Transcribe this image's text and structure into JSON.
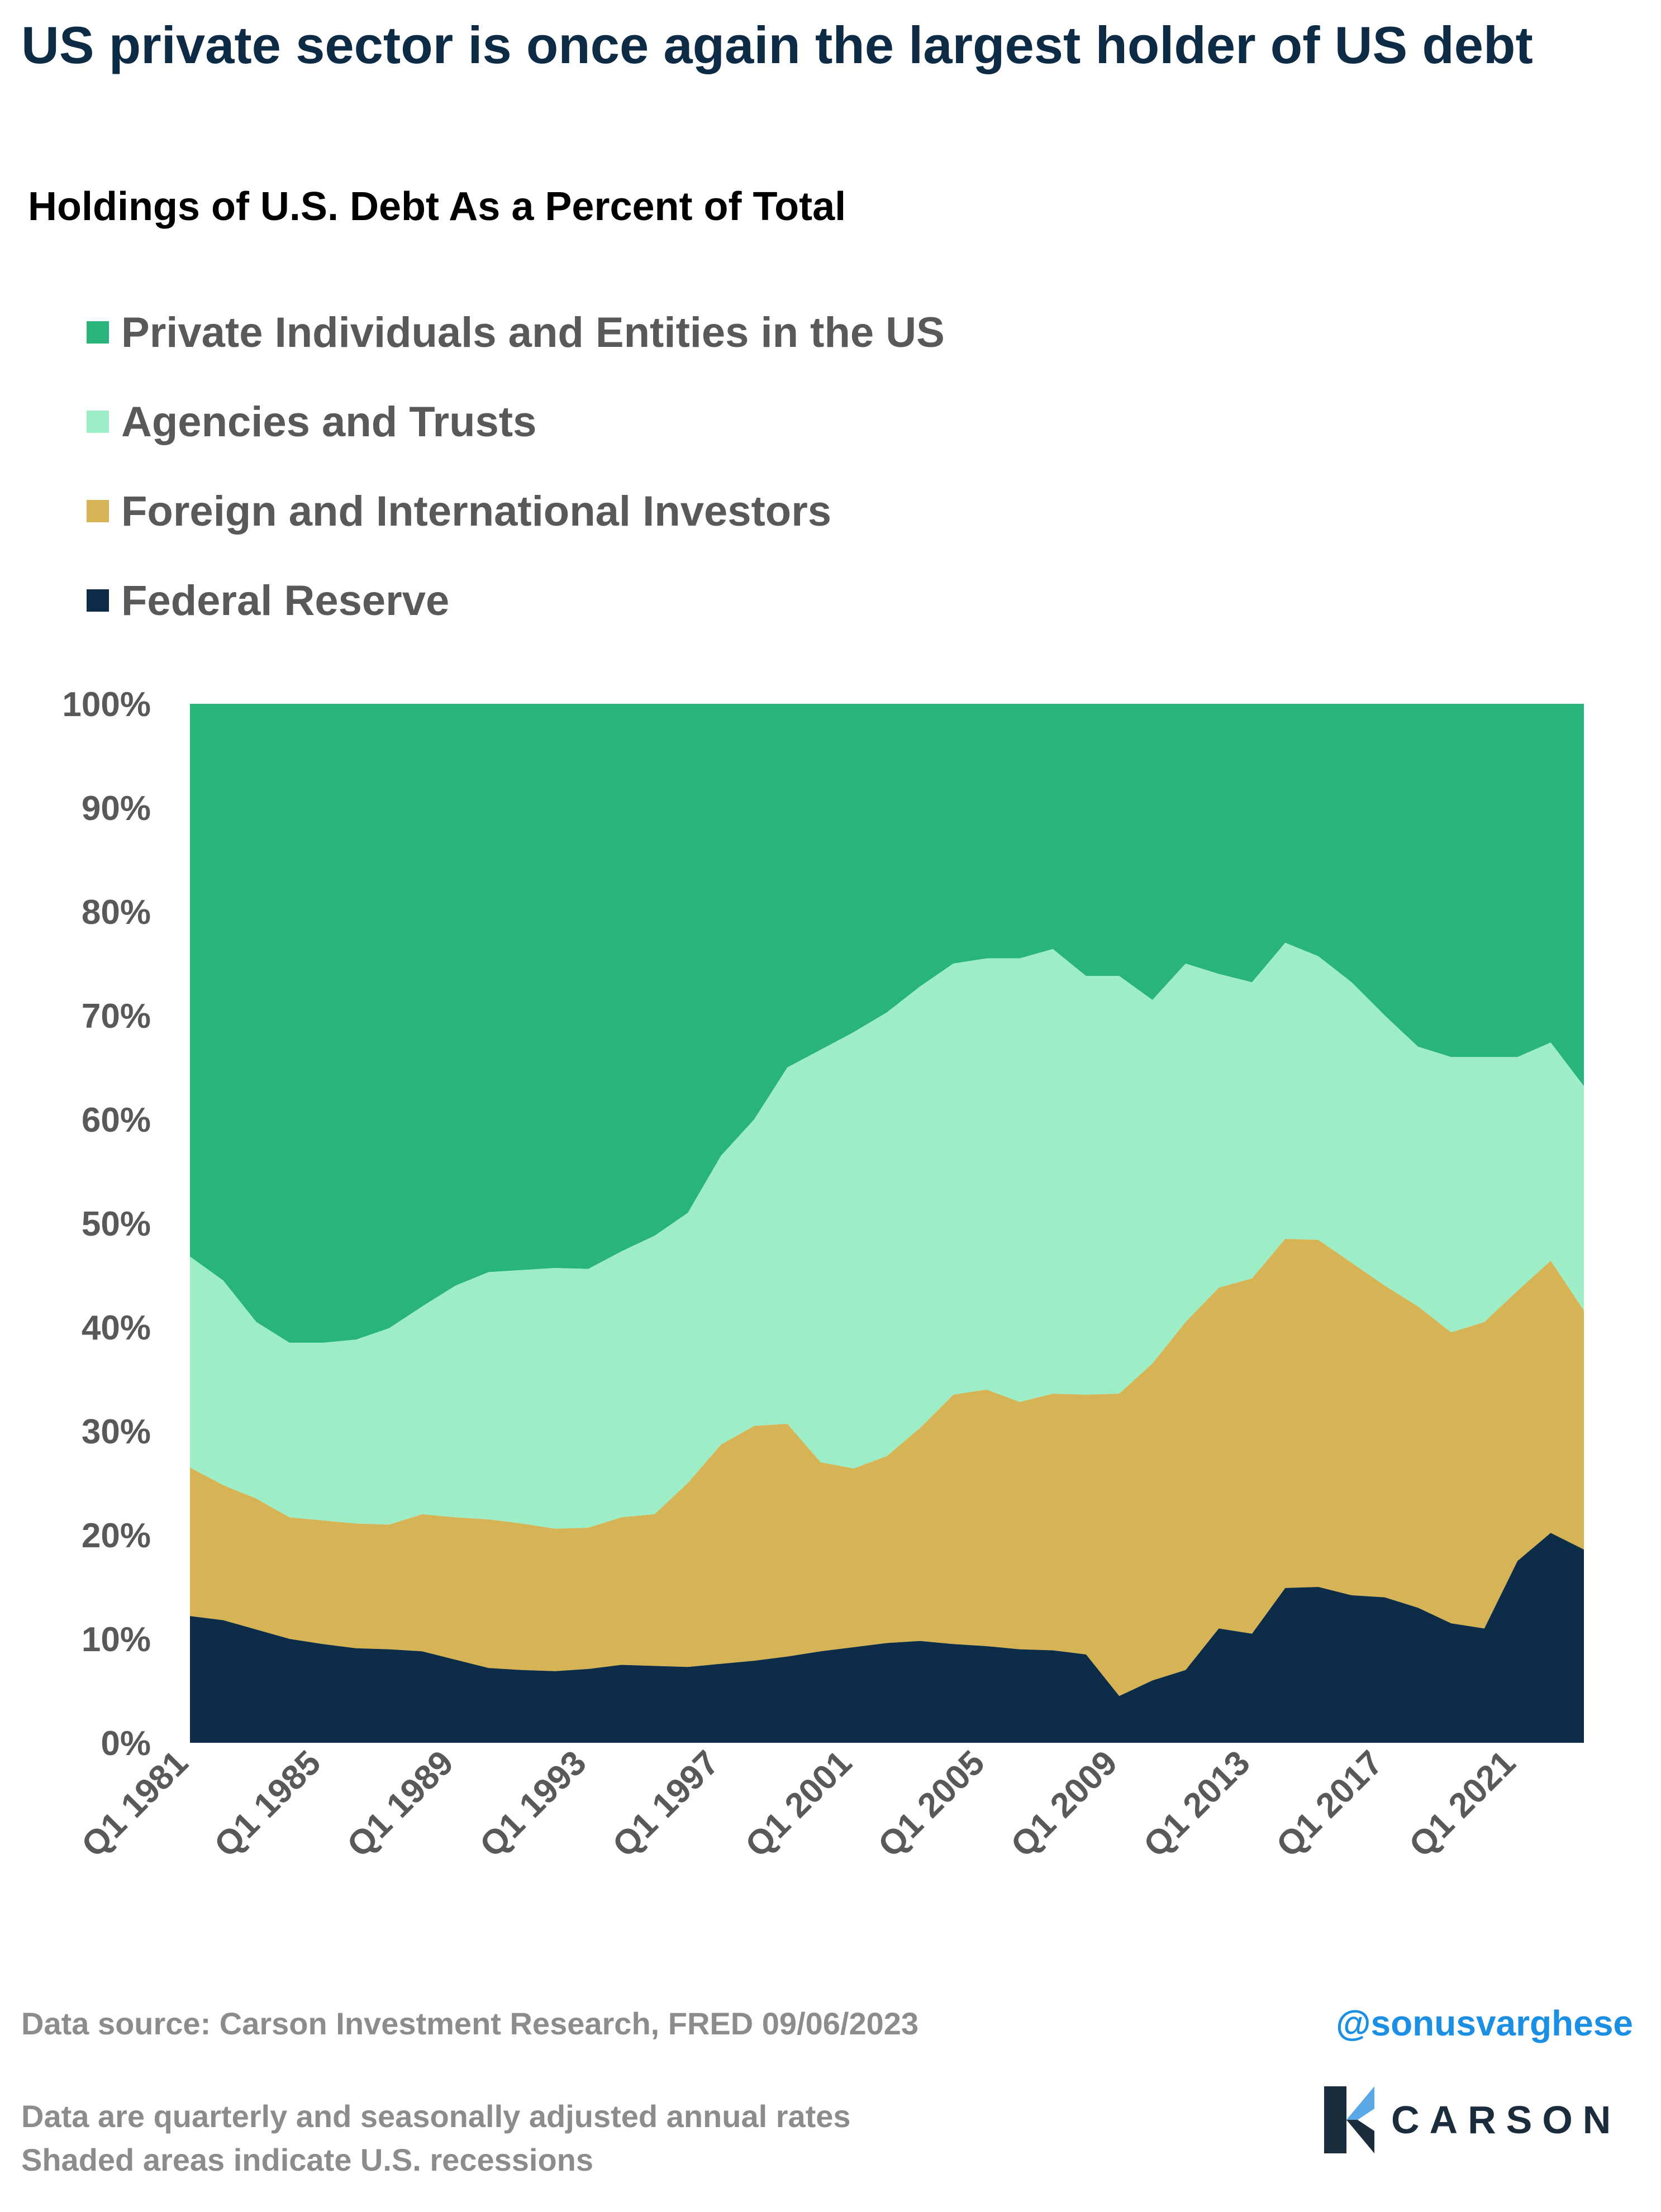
{
  "header": {
    "title": "US private sector is once again the largest holder of US debt",
    "subtitle": "Holdings of U.S. Debt As a Percent of Total"
  },
  "legend": [
    {
      "label": "Private Individuals and Entities in the US",
      "color": "#28b47b"
    },
    {
      "label": "Agencies and Trusts",
      "color": "#9deec6"
    },
    {
      "label": "Foreign and International Investors",
      "color": "#d6b456"
    },
    {
      "label": "Federal Reserve",
      "color": "#0d2c48"
    }
  ],
  "chart_data": {
    "type": "area",
    "stacked": true,
    "x": [
      "Q1 1981",
      "Q1 1982",
      "Q1 1983",
      "Q1 1984",
      "Q1 1985",
      "Q1 1986",
      "Q1 1987",
      "Q1 1988",
      "Q1 1989",
      "Q1 1990",
      "Q1 1991",
      "Q1 1992",
      "Q1 1993",
      "Q1 1994",
      "Q1 1995",
      "Q1 1996",
      "Q1 1997",
      "Q1 1998",
      "Q1 1999",
      "Q1 2000",
      "Q1 2001",
      "Q1 2002",
      "Q1 2003",
      "Q1 2004",
      "Q1 2005",
      "Q1 2006",
      "Q1 2007",
      "Q1 2008",
      "Q1 2009",
      "Q1 2010",
      "Q1 2011",
      "Q1 2012",
      "Q1 2013",
      "Q1 2014",
      "Q1 2015",
      "Q1 2016",
      "Q1 2017",
      "Q1 2018",
      "Q1 2019",
      "Q1 2020",
      "Q1 2021",
      "Q1 2022",
      "Q2 2023"
    ],
    "series": [
      {
        "name": "Federal Reserve",
        "color": "#0d2c48",
        "values": [
          12.2,
          11.8,
          10.9,
          10.0,
          9.5,
          9.1,
          9.0,
          8.8,
          8.0,
          7.2,
          7.0,
          6.9,
          7.1,
          7.5,
          7.4,
          7.3,
          7.6,
          7.9,
          8.3,
          8.8,
          9.2,
          9.6,
          9.8,
          9.5,
          9.3,
          9.0,
          8.9,
          8.5,
          4.5,
          6.0,
          7.0,
          11.0,
          10.5,
          14.9,
          15.0,
          14.2,
          14.0,
          13.0,
          11.5,
          11.0,
          17.5,
          20.2,
          18.6
        ]
      },
      {
        "name": "Foreign and International Investors",
        "color": "#d6b456",
        "values": [
          14.3,
          13.0,
          12.6,
          11.7,
          11.9,
          12.0,
          12.0,
          13.2,
          13.7,
          14.3,
          14.1,
          13.7,
          13.6,
          14.2,
          14.6,
          17.7,
          21.1,
          22.6,
          22.4,
          18.2,
          17.2,
          18.0,
          20.5,
          24.0,
          24.7,
          23.8,
          24.7,
          25.0,
          29.1,
          30.5,
          33.5,
          32.8,
          34.2,
          33.6,
          33.4,
          32.0,
          30.0,
          29.0,
          28.0,
          29.5,
          26.0,
          26.2,
          23.0
        ]
      },
      {
        "name": "Agencies and Trusts",
        "color": "#9deec6",
        "values": [
          20.3,
          19.7,
          17.0,
          16.8,
          17.1,
          17.7,
          18.9,
          20.0,
          22.3,
          23.8,
          24.4,
          25.1,
          24.9,
          25.6,
          26.8,
          26.0,
          27.8,
          29.5,
          34.3,
          39.7,
          42.0,
          42.7,
          42.5,
          41.5,
          41.5,
          42.7,
          42.8,
          40.3,
          40.2,
          35.0,
          34.5,
          30.2,
          28.5,
          28.5,
          27.3,
          27.0,
          26.0,
          25.0,
          26.5,
          25.5,
          22.5,
          21.0,
          21.6
        ]
      },
      {
        "name": "Private Individuals and Entities in the US",
        "color": "#28b47b",
        "values": [
          53.2,
          55.5,
          59.5,
          61.5,
          61.5,
          61.2,
          60.1,
          58.0,
          56.0,
          54.7,
          54.5,
          54.3,
          54.4,
          52.7,
          51.2,
          49.0,
          43.5,
          40.0,
          35.0,
          33.3,
          31.6,
          29.7,
          27.2,
          25.0,
          24.5,
          24.5,
          23.6,
          26.2,
          26.2,
          28.5,
          25.0,
          26.0,
          26.8,
          23.0,
          24.3,
          26.8,
          30.0,
          33.0,
          34.0,
          34.0,
          34.0,
          32.6,
          36.8
        ]
      }
    ],
    "ylim": [
      0,
      100
    ],
    "yticks": [
      "0%",
      "10%",
      "20%",
      "30%",
      "40%",
      "50%",
      "60%",
      "70%",
      "80%",
      "90%",
      "100%"
    ],
    "xticks": [
      "Q1 1981",
      "Q1 1985",
      "Q1 1989",
      "Q1 1993",
      "Q1 1997",
      "Q1 2001",
      "Q1 2005",
      "Q1 2009",
      "Q1 2013",
      "Q1 2017",
      "Q1 2021"
    ],
    "grid": false,
    "legend_position": "top-left"
  },
  "footer": {
    "source": "Data source: Carson Investment Research, FRED   09/06/2023",
    "handle": "@sonusvarghese",
    "note1": "Data are quarterly and seasonally adjusted annual rates",
    "note2": "Shaded areas indicate U.S. recessions",
    "logo_text": "CARSON"
  }
}
